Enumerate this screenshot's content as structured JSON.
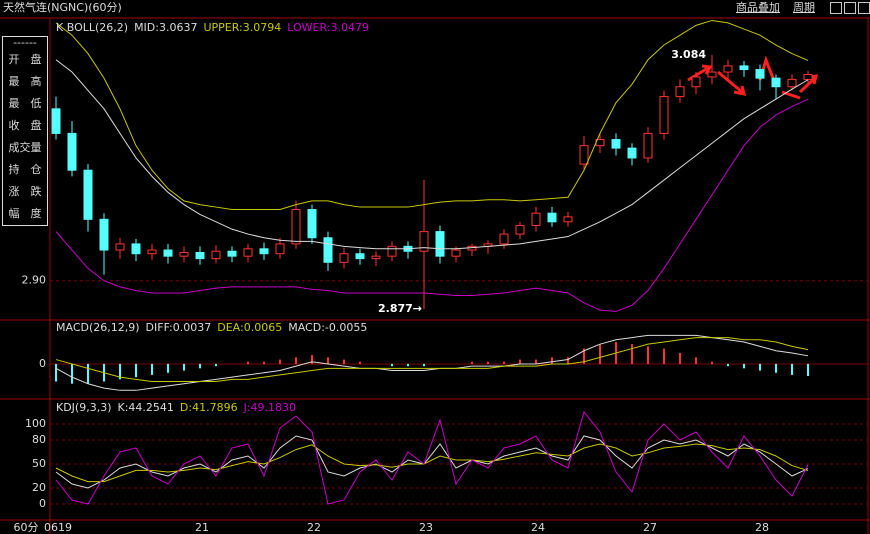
{
  "toolbar": {
    "title": "天然气连(NGNC)(60分)",
    "menu": [
      "商品叠加",
      "周期"
    ],
    "period_label": "60分"
  },
  "info_panel": {
    "header": "------",
    "rows": [
      "开　盘",
      "最　高",
      "最　低",
      "收　盘",
      "成交量",
      "持　仓",
      "涨　跌",
      "幅　度"
    ]
  },
  "chart_data": [
    {
      "type": "candlestick",
      "title": "K  BOLL(26,2)",
      "up_color": "#ff3232",
      "down_color": "#54ffff",
      "ylim": [
        2.868,
        3.114
      ],
      "yticks": [
        {
          "value": 2.9,
          "label": "2.90"
        }
      ],
      "grid": true,
      "open": [
        3.04,
        3.02,
        2.99,
        2.95,
        2.925,
        2.93,
        2.922,
        2.925,
        2.92,
        2.923,
        2.918,
        2.924,
        2.92,
        2.926,
        2.922,
        2.93,
        2.958,
        2.935,
        2.915,
        2.922,
        2.918,
        2.92,
        2.928,
        2.924,
        2.94,
        2.92,
        2.925,
        2.928,
        2.93,
        2.938,
        2.945,
        2.955,
        2.948,
        2.995,
        3.01,
        3.015,
        3.008,
        3.0,
        3.02,
        3.05,
        3.058,
        3.066,
        3.07,
        3.075,
        3.072,
        3.065,
        3.058,
        3.064
      ],
      "high": [
        3.05,
        3.03,
        2.995,
        2.955,
        2.935,
        2.934,
        2.93,
        2.93,
        2.928,
        2.928,
        2.929,
        2.928,
        2.93,
        2.931,
        2.935,
        2.965,
        2.962,
        2.94,
        2.927,
        2.926,
        2.924,
        2.932,
        2.932,
        2.982,
        2.945,
        2.928,
        2.93,
        2.933,
        2.942,
        2.948,
        2.96,
        2.96,
        2.956,
        3.018,
        3.02,
        3.02,
        3.012,
        3.025,
        3.055,
        3.064,
        3.07,
        3.084,
        3.08,
        3.079,
        3.076,
        3.068,
        3.068,
        3.071
      ],
      "low": [
        3.015,
        2.985,
        2.94,
        2.905,
        2.918,
        2.916,
        2.917,
        2.914,
        2.915,
        2.913,
        2.914,
        2.915,
        2.915,
        2.917,
        2.918,
        2.926,
        2.93,
        2.908,
        2.91,
        2.913,
        2.912,
        2.916,
        2.918,
        2.877,
        2.914,
        2.915,
        2.92,
        2.922,
        2.926,
        2.934,
        2.94,
        2.944,
        2.944,
        2.99,
        3.004,
        3.002,
        2.994,
        2.996,
        3.015,
        3.045,
        3.052,
        3.06,
        3.064,
        3.066,
        3.055,
        3.048,
        3.055,
        3.06
      ],
      "close": [
        3.02,
        2.99,
        2.95,
        2.925,
        2.93,
        2.922,
        2.925,
        2.92,
        2.923,
        2.918,
        2.924,
        2.92,
        2.926,
        2.922,
        2.93,
        2.958,
        2.935,
        2.915,
        2.922,
        2.918,
        2.92,
        2.928,
        2.924,
        2.94,
        2.92,
        2.925,
        2.928,
        2.93,
        2.938,
        2.945,
        2.955,
        2.948,
        2.952,
        3.01,
        3.015,
        3.008,
        3.0,
        3.02,
        3.05,
        3.058,
        3.066,
        3.07,
        3.075,
        3.072,
        3.065,
        3.058,
        3.064,
        3.068
      ],
      "series": [
        {
          "name": "MID:3.0637",
          "color": "#dcdcdc",
          "values": [
            3.08,
            3.07,
            3.055,
            3.04,
            3.02,
            3.0,
            2.985,
            2.972,
            2.962,
            2.954,
            2.948,
            2.942,
            2.938,
            2.935,
            2.933,
            2.932,
            2.932,
            2.93,
            2.928,
            2.927,
            2.926,
            2.926,
            2.926,
            2.927,
            2.926,
            2.926,
            2.927,
            2.928,
            2.929,
            2.93,
            2.932,
            2.934,
            2.936,
            2.942,
            2.948,
            2.955,
            2.962,
            2.972,
            2.982,
            2.992,
            3.002,
            3.012,
            3.022,
            3.032,
            3.04,
            3.048,
            3.056,
            3.0637
          ]
        },
        {
          "name": "UPPER:3.0794",
          "color": "#c8c800",
          "values": [
            3.11,
            3.1,
            3.085,
            3.065,
            3.04,
            3.01,
            2.99,
            2.975,
            2.965,
            2.962,
            2.96,
            2.958,
            2.958,
            2.958,
            2.958,
            2.962,
            2.965,
            2.965,
            2.962,
            2.96,
            2.96,
            2.96,
            2.96,
            2.962,
            2.964,
            2.965,
            2.965,
            2.966,
            2.966,
            2.965,
            2.966,
            2.967,
            2.968,
            2.99,
            3.02,
            3.045,
            3.06,
            3.08,
            3.092,
            3.1,
            3.108,
            3.112,
            3.11,
            3.105,
            3.1,
            3.092,
            3.085,
            3.0794
          ]
        },
        {
          "name": "LOWER:3.0479",
          "color": "#c800c8",
          "values": [
            2.94,
            2.925,
            2.91,
            2.9,
            2.895,
            2.892,
            2.89,
            2.89,
            2.89,
            2.892,
            2.894,
            2.895,
            2.895,
            2.895,
            2.895,
            2.895,
            2.893,
            2.892,
            2.89,
            2.89,
            2.89,
            2.89,
            2.89,
            2.89,
            2.889,
            2.888,
            2.888,
            2.889,
            2.89,
            2.892,
            2.894,
            2.892,
            2.89,
            2.882,
            2.876,
            2.875,
            2.88,
            2.892,
            2.91,
            2.93,
            2.95,
            2.97,
            2.99,
            3.01,
            3.025,
            3.035,
            3.042,
            3.0479
          ]
        }
      ],
      "annotations": [
        {
          "value": 3.084,
          "label": "3.084"
        },
        {
          "value": 2.877,
          "label": "2.877→"
        }
      ]
    },
    {
      "type": "macd",
      "title": "MACD(26,12,9)",
      "ylim": [
        -0.0155,
        0.02
      ],
      "yticks": [
        0
      ],
      "up_color": "#ff3232",
      "down_color": "#54ffff",
      "histogram": {
        "name": "MACD:-0.0055",
        "color": "#dcdcdc",
        "values": [
          -0.008,
          -0.009,
          -0.009,
          -0.008,
          -0.007,
          -0.006,
          -0.005,
          -0.004,
          -0.003,
          -0.002,
          -0.001,
          0,
          0.001,
          0.001,
          0.002,
          0.003,
          0.004,
          0.003,
          0.002,
          0.001,
          0,
          -0.001,
          -0.001,
          -0.001,
          0,
          0,
          0.001,
          0.001,
          0.001,
          0.002,
          0.002,
          0.003,
          0.003,
          0.007,
          0.009,
          0.01,
          0.009,
          0.008,
          0.007,
          0.005,
          0.003,
          0.001,
          -0.001,
          -0.002,
          -0.003,
          -0.004,
          -0.005,
          -0.0055
        ]
      },
      "series": [
        {
          "name": "DIFF:0.0037",
          "color": "#dcdcdc",
          "values": [
            -0.002,
            -0.006,
            -0.009,
            -0.011,
            -0.012,
            -0.012,
            -0.011,
            -0.01,
            -0.009,
            -0.008,
            -0.007,
            -0.006,
            -0.005,
            -0.004,
            -0.003,
            -0.001,
            0.001,
            0.0,
            -0.001,
            -0.002,
            -0.002,
            -0.003,
            -0.003,
            -0.003,
            -0.002,
            -0.002,
            -0.001,
            -0.001,
            -0.001,
            0,
            0,
            0.001,
            0.002,
            0.006,
            0.009,
            0.011,
            0.012,
            0.013,
            0.013,
            0.013,
            0.013,
            0.012,
            0.011,
            0.01,
            0.008,
            0.006,
            0.005,
            0.0037
          ]
        },
        {
          "name": "DEA:0.0065",
          "color": "#c8c800",
          "values": [
            0.002,
            0.0,
            -0.002,
            -0.004,
            -0.006,
            -0.007,
            -0.008,
            -0.008,
            -0.008,
            -0.008,
            -0.008,
            -0.007,
            -0.007,
            -0.006,
            -0.005,
            -0.004,
            -0.003,
            -0.002,
            -0.002,
            -0.002,
            -0.002,
            -0.002,
            -0.002,
            -0.002,
            -0.002,
            -0.002,
            -0.002,
            -0.002,
            -0.001,
            -0.001,
            -0.001,
            0,
            0,
            0.001,
            0.003,
            0.005,
            0.007,
            0.009,
            0.01,
            0.011,
            0.012,
            0.012,
            0.012,
            0.011,
            0.011,
            0.01,
            0.008,
            0.0065
          ]
        }
      ]
    },
    {
      "type": "line",
      "title": "KDJ(9,3,3)",
      "ylim": [
        -20,
        130
      ],
      "yticks": [
        0,
        20,
        50,
        80,
        100
      ],
      "grid": true,
      "categories": [
        "0619",
        null,
        null,
        null,
        null,
        null,
        null,
        null,
        null,
        "21",
        null,
        null,
        null,
        null,
        null,
        null,
        "22",
        null,
        null,
        null,
        null,
        null,
        null,
        "23",
        null,
        null,
        null,
        null,
        null,
        null,
        "24",
        null,
        null,
        null,
        null,
        null,
        null,
        "27",
        null,
        null,
        null,
        null,
        null,
        null,
        "28",
        null,
        null,
        null
      ],
      "series": [
        {
          "name": "K:44.2541",
          "color": "#dcdcdc",
          "values": [
            40,
            25,
            20,
            30,
            45,
            50,
            40,
            35,
            45,
            50,
            40,
            55,
            60,
            45,
            70,
            85,
            80,
            40,
            35,
            45,
            50,
            40,
            55,
            50,
            75,
            45,
            55,
            50,
            60,
            65,
            70,
            60,
            55,
            85,
            80,
            60,
            45,
            70,
            80,
            75,
            80,
            70,
            60,
            75,
            65,
            50,
            35,
            44.2541
          ]
        },
        {
          "name": "D:41.7896",
          "color": "#c8c800",
          "values": [
            45,
            35,
            28,
            28,
            35,
            42,
            42,
            40,
            42,
            45,
            43,
            48,
            53,
            50,
            58,
            68,
            74,
            60,
            50,
            48,
            49,
            46,
            50,
            50,
            60,
            55,
            55,
            53,
            56,
            60,
            64,
            62,
            60,
            70,
            75,
            70,
            60,
            64,
            70,
            72,
            75,
            73,
            68,
            70,
            68,
            60,
            48,
            41.7896
          ]
        },
        {
          "name": "J:49.1830",
          "color": "#c800c8",
          "values": [
            30,
            5,
            0,
            35,
            65,
            70,
            35,
            25,
            50,
            60,
            35,
            70,
            75,
            35,
            95,
            110,
            90,
            0,
            5,
            40,
            55,
            30,
            65,
            50,
            105,
            25,
            55,
            45,
            70,
            75,
            85,
            55,
            45,
            115,
            90,
            40,
            15,
            80,
            100,
            80,
            90,
            65,
            45,
            85,
            60,
            30,
            10,
            49.183
          ]
        }
      ]
    }
  ]
}
